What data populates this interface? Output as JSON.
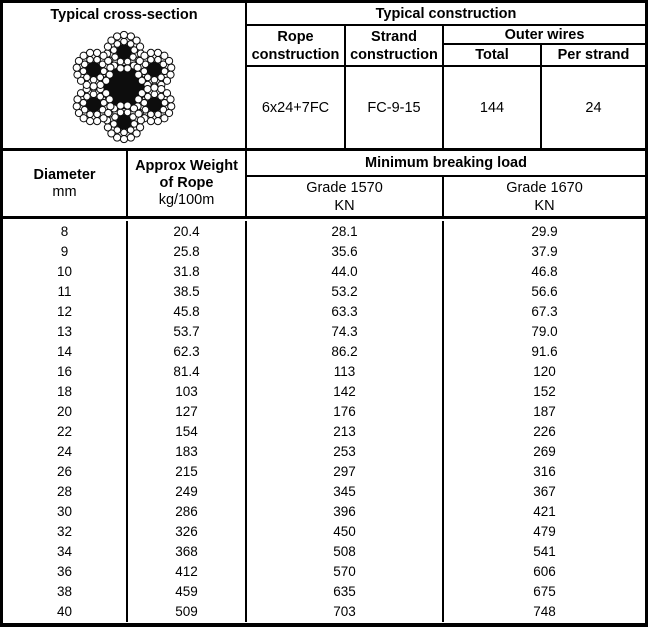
{
  "top": {
    "cross_section_title": "Typical cross-section",
    "construction_title": "Typical construction",
    "rope_construction_header": "Rope construction",
    "strand_construction_header": "Strand construction",
    "outer_wires_header": "Outer wires",
    "outer_total_header": "Total",
    "outer_per_strand_header": "Per strand",
    "rope_construction_value": "6x24+7FC",
    "strand_construction_value": "FC-9-15",
    "outer_total_value": "144",
    "outer_per_strand_value": "24"
  },
  "spec_header": {
    "diameter_label": "Diameter",
    "diameter_unit": "mm",
    "weight_label": "Approx Weight of Rope",
    "weight_unit": "kg/100m",
    "breaking_load_label": "Minimum breaking load",
    "grade_1570_label": "Grade 1570",
    "grade_1570_unit": "KN",
    "grade_1670_label": "Grade 1670",
    "grade_1670_unit": "KN"
  },
  "table": {
    "columns": [
      "Diameter mm",
      "Approx Weight of Rope kg/100m",
      "Grade 1570 KN",
      "Grade 1670 KN"
    ],
    "rows": [
      [
        "8",
        "20.4",
        "28.1",
        "29.9"
      ],
      [
        "9",
        "25.8",
        "35.6",
        "37.9"
      ],
      [
        "10",
        "31.8",
        "44.0",
        "46.8"
      ],
      [
        "11",
        "38.5",
        "53.2",
        "56.6"
      ],
      [
        "12",
        "45.8",
        "63.3",
        "67.3"
      ],
      [
        "13",
        "53.7",
        "74.3",
        "79.0"
      ],
      [
        "14",
        "62.3",
        "86.2",
        "91.6"
      ],
      [
        "16",
        "81.4",
        "113",
        "120"
      ],
      [
        "18",
        "103",
        "142",
        "152"
      ],
      [
        "20",
        "127",
        "176",
        "187"
      ],
      [
        "22",
        "154",
        "213",
        "226"
      ],
      [
        "24",
        "183",
        "253",
        "269"
      ],
      [
        "26",
        "215",
        "297",
        "316"
      ],
      [
        "28",
        "249",
        "345",
        "367"
      ],
      [
        "30",
        "286",
        "396",
        "421"
      ],
      [
        "32",
        "326",
        "450",
        "479"
      ],
      [
        "34",
        "368",
        "508",
        "541"
      ],
      [
        "36",
        "412",
        "570",
        "606"
      ],
      [
        "38",
        "459",
        "635",
        "675"
      ],
      [
        "40",
        "509",
        "703",
        "748"
      ]
    ]
  },
  "colors": {
    "border": "#000000",
    "background": "#ffffff",
    "text": "#000000"
  }
}
